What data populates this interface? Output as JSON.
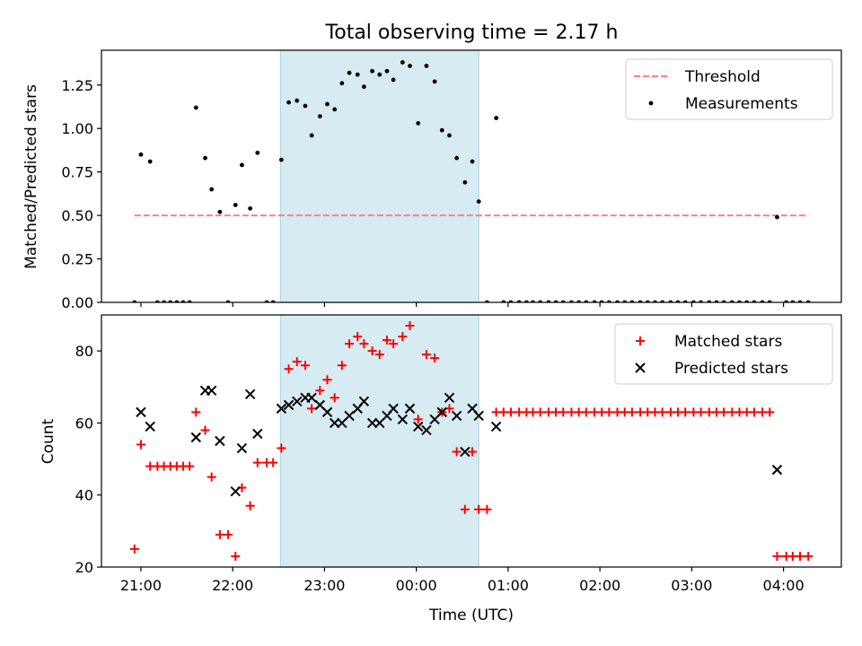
{
  "figure": {
    "title": "Total observing time = 2.17 h",
    "xlabel": "Time (UTC)",
    "x_ticks": [
      "21:00",
      "22:00",
      "23:00",
      "00:00",
      "01:00",
      "02:00",
      "03:00",
      "04:00"
    ],
    "x_tick_hours": [
      21,
      22,
      23,
      24,
      25,
      26,
      27,
      28
    ],
    "xlim": [
      20.57,
      28.63
    ],
    "shaded_span": [
      22.52,
      24.68
    ],
    "colors": {
      "threshold": "#ff7f7f",
      "measurements": "#000000",
      "matched": "#ff0000",
      "predicted": "#000000",
      "span": "#add8e6"
    }
  },
  "chart_data": [
    {
      "type": "scatter",
      "ylabel": "Matched/Predicted stars",
      "ylim": [
        0,
        1.45
      ],
      "y_ticks": [
        0.0,
        0.25,
        0.5,
        0.75,
        1.0,
        1.25
      ],
      "y_tick_labels": [
        "0.00",
        "0.25",
        "0.50",
        "0.75",
        "1.00",
        "1.25"
      ],
      "legend": {
        "position": "top-right",
        "entries": [
          "Threshold",
          "Measurements"
        ]
      },
      "threshold": {
        "name": "Threshold",
        "value": 0.5,
        "x": [
          20.93,
          28.27
        ]
      },
      "series": [
        {
          "name": "Measurements",
          "x": [
            20.93,
            21.0,
            21.1,
            21.18,
            21.25,
            21.32,
            21.39,
            21.46,
            21.53,
            21.6,
            21.7,
            21.77,
            21.86,
            21.95,
            22.03,
            22.1,
            22.19,
            22.27,
            22.37,
            22.44,
            22.53,
            22.61,
            22.7,
            22.79,
            22.86,
            22.95,
            23.03,
            23.11,
            23.19,
            23.27,
            23.36,
            23.43,
            23.52,
            23.6,
            23.68,
            23.75,
            23.85,
            23.93,
            24.02,
            24.11,
            24.2,
            24.28,
            24.36,
            24.44,
            24.53,
            24.61,
            24.68,
            24.77,
            24.87,
            24.95,
            25.03,
            25.12,
            25.2,
            25.27,
            25.35,
            25.44,
            25.52,
            25.6,
            25.69,
            25.77,
            25.85,
            25.94,
            26.02,
            26.1,
            26.19,
            26.27,
            26.35,
            26.44,
            26.52,
            26.6,
            26.68,
            26.77,
            26.85,
            26.93,
            27.02,
            27.1,
            27.19,
            27.27,
            27.35,
            27.44,
            27.52,
            27.6,
            27.68,
            27.77,
            27.85,
            27.93,
            28.03,
            28.1,
            28.18,
            28.27
          ],
          "y": [
            0.0,
            0.85,
            0.81,
            0.0,
            0.0,
            0.0,
            0.0,
            0.0,
            0.0,
            1.12,
            0.83,
            0.65,
            0.52,
            0.0,
            0.56,
            0.79,
            0.54,
            0.86,
            0.0,
            0.0,
            0.82,
            1.15,
            1.16,
            1.13,
            0.96,
            1.07,
            1.14,
            1.11,
            1.26,
            1.32,
            1.31,
            1.24,
            1.33,
            1.31,
            1.33,
            1.28,
            1.38,
            1.36,
            1.03,
            1.36,
            1.27,
            0.99,
            0.96,
            0.83,
            0.69,
            0.81,
            0.58,
            0.0,
            1.06,
            0.0,
            0.0,
            0.0,
            0.0,
            0.0,
            0.0,
            0.0,
            0.0,
            0.0,
            0.0,
            0.0,
            0.0,
            0.0,
            0.0,
            0.0,
            0.0,
            0.0,
            0.0,
            0.0,
            0.0,
            0.0,
            0.0,
            0.0,
            0.0,
            0.0,
            0.0,
            0.0,
            0.0,
            0.0,
            0.0,
            0.0,
            0.0,
            0.0,
            0.0,
            0.0,
            0.0,
            0.49,
            0.0,
            0.0,
            0.0,
            0.0
          ]
        }
      ]
    },
    {
      "type": "scatter",
      "ylabel": "Count",
      "ylim": [
        20,
        90
      ],
      "y_ticks": [
        20,
        40,
        60,
        80
      ],
      "y_tick_labels": [
        "20",
        "40",
        "60",
        "80"
      ],
      "legend": {
        "position": "top-right",
        "entries": [
          "Matched stars",
          "Predicted stars"
        ]
      },
      "series": [
        {
          "name": "Matched stars",
          "x": [
            20.93,
            21.0,
            21.1,
            21.18,
            21.25,
            21.32,
            21.39,
            21.46,
            21.53,
            21.6,
            21.7,
            21.77,
            21.86,
            21.95,
            22.03,
            22.1,
            22.19,
            22.27,
            22.37,
            22.44,
            22.53,
            22.61,
            22.7,
            22.79,
            22.86,
            22.95,
            23.03,
            23.11,
            23.19,
            23.27,
            23.36,
            23.43,
            23.52,
            23.6,
            23.68,
            23.75,
            23.85,
            23.93,
            24.02,
            24.11,
            24.2,
            24.28,
            24.36,
            24.44,
            24.53,
            24.61,
            24.68,
            24.77,
            24.87,
            24.95,
            25.03,
            25.12,
            25.2,
            25.27,
            25.35,
            25.44,
            25.52,
            25.6,
            25.69,
            25.77,
            25.85,
            25.94,
            26.02,
            26.1,
            26.19,
            26.27,
            26.35,
            26.44,
            26.52,
            26.6,
            26.68,
            26.77,
            26.85,
            26.93,
            27.02,
            27.1,
            27.19,
            27.27,
            27.35,
            27.44,
            27.52,
            27.6,
            27.68,
            27.77,
            27.85,
            27.93,
            28.03,
            28.1,
            28.18,
            28.27
          ],
          "y": [
            25,
            54,
            48,
            48,
            48,
            48,
            48,
            48,
            48,
            63,
            58,
            45,
            29,
            29,
            23,
            42,
            37,
            49,
            49,
            49,
            53,
            75,
            77,
            76,
            64,
            69,
            72,
            67,
            76,
            82,
            84,
            82,
            80,
            79,
            83,
            82,
            84,
            87,
            61,
            79,
            78,
            63,
            64,
            52,
            36,
            52,
            36,
            36,
            63,
            63,
            63,
            63,
            63,
            63,
            63,
            63,
            63,
            63,
            63,
            63,
            63,
            63,
            63,
            63,
            63,
            63,
            63,
            63,
            63,
            63,
            63,
            63,
            63,
            63,
            63,
            63,
            63,
            63,
            63,
            63,
            63,
            63,
            63,
            63,
            63,
            23,
            23,
            23,
            23,
            23
          ]
        },
        {
          "name": "Predicted stars",
          "x": [
            21.0,
            21.1,
            21.6,
            21.7,
            21.77,
            21.86,
            22.03,
            22.1,
            22.19,
            22.27,
            22.53,
            22.61,
            22.7,
            22.79,
            22.86,
            22.95,
            23.03,
            23.11,
            23.19,
            23.27,
            23.36,
            23.43,
            23.52,
            23.6,
            23.68,
            23.75,
            23.85,
            23.93,
            24.02,
            24.11,
            24.2,
            24.28,
            24.36,
            24.44,
            24.53,
            24.61,
            24.68,
            24.87,
            27.93
          ],
          "y": [
            63,
            59,
            56,
            69,
            69,
            55,
            41,
            53,
            68,
            57,
            64,
            65,
            66,
            67,
            67,
            65,
            63,
            60,
            60,
            62,
            64,
            66,
            60,
            60,
            62,
            64,
            61,
            64,
            59,
            58,
            61,
            63,
            67,
            62,
            52,
            64,
            62,
            59,
            47
          ]
        }
      ]
    }
  ]
}
